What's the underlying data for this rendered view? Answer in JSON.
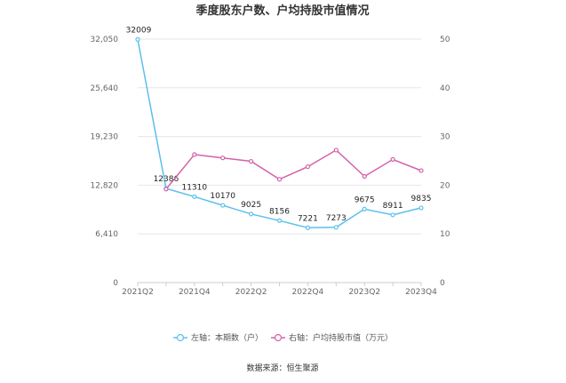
{
  "chart_data": {
    "type": "line",
    "title": "季度股东户数、户均持股市值情况",
    "categories": [
      "2021Q2",
      "2021Q3",
      "2021Q4",
      "2022Q1",
      "2022Q2",
      "2022Q3",
      "2022Q4",
      "2023Q1",
      "2023Q2",
      "2023Q3",
      "2023Q4"
    ],
    "x_tick_labels": [
      "2021Q2",
      "2021Q4",
      "2022Q2",
      "2022Q4",
      "2023Q2",
      "2023Q4"
    ],
    "y_left": {
      "ticks": [
        "0",
        "6,410",
        "12,820",
        "19,230",
        "25,640",
        "32,050"
      ],
      "lim": [
        0,
        32050
      ]
    },
    "y_right": {
      "ticks": [
        "0",
        "10",
        "20",
        "30",
        "40",
        "50"
      ],
      "lim": [
        0,
        50
      ]
    },
    "series": [
      {
        "name": "左轴：本期数（户）",
        "axis": "left",
        "color": "#5bc0eb",
        "values": [
          32009,
          12386,
          11310,
          10170,
          9025,
          8156,
          7221,
          7273,
          9675,
          8911,
          9835
        ],
        "labels": [
          "32009",
          "12386",
          "11310",
          "10170",
          "9025",
          "8156",
          "7221",
          "7273",
          "9675",
          "8911",
          "9835"
        ]
      },
      {
        "name": "右轴：户均持股市值（万元）",
        "axis": "right",
        "color": "#d460a8",
        "values": [
          null,
          19.2,
          26.3,
          25.6,
          24.9,
          21.2,
          23.8,
          27.2,
          21.8,
          25.3,
          23.0
        ]
      }
    ],
    "grid": "horizontal",
    "legend": "bottom-center"
  },
  "source": "数据来源：恒生聚源"
}
